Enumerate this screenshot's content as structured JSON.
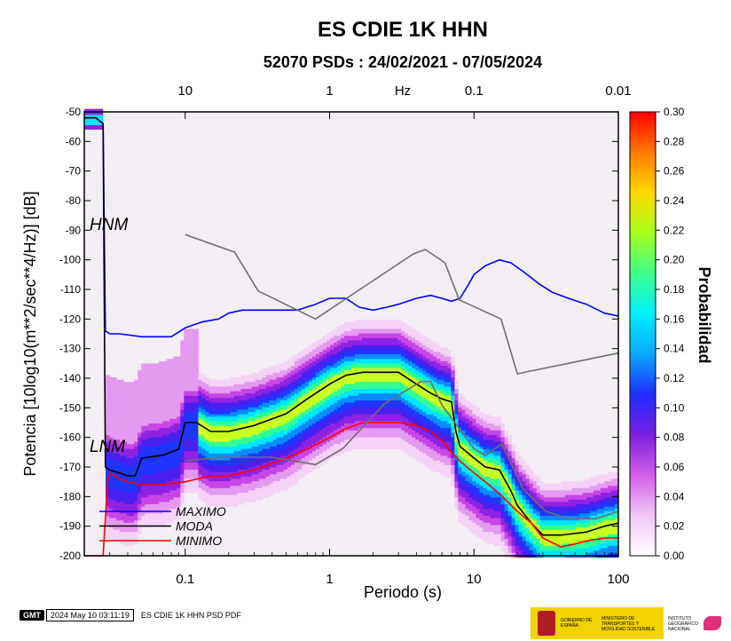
{
  "title": "ES CDIE 1K HHN",
  "subtitle": "52070 PSDs : 24/02/2021 - 07/05/2024",
  "footer": {
    "logo": "GMT",
    "timestamp": "2024 May 10 03:11:19",
    "caption": "ES CDIE 1K HHN PSD PDF",
    "agency_1": "GOBIERNO DE ESPAÑA",
    "agency_2": "MINISTERIO DE TRANSPORTES Y MOVILIDAD SOSTENIBLE",
    "agency_3": "INSTITUTO GEOGRÁFICO NACIONAL"
  },
  "chart_data": {
    "type": "heatmap",
    "x_scale": "log",
    "xlabel": "Periodo (s)",
    "ylabel": "Potencia [10log10(m**2/sec**4/Hz)] [dB]",
    "xlim": [
      0.02,
      100
    ],
    "ylim": [
      -200,
      -50
    ],
    "x_ticks": [
      "0.1",
      "1",
      "10",
      "100"
    ],
    "x_tick_values": [
      0.1,
      1,
      10,
      100
    ],
    "top_axis_label": "Hz",
    "top_ticks": [
      "10",
      "1",
      "0.1",
      "0.01"
    ],
    "top_tick_periods": [
      0.1,
      1,
      10,
      100
    ],
    "y_ticks": [
      -50,
      -60,
      -70,
      -80,
      -90,
      -100,
      -110,
      -120,
      -130,
      -140,
      -150,
      -160,
      -170,
      -180,
      -190,
      -200
    ],
    "colorbar": {
      "label": "Probabilidad",
      "range": [
        0.0,
        0.3
      ],
      "ticks": [
        "0.30",
        "0.28",
        "0.26",
        "0.24",
        "0.22",
        "0.20",
        "0.18",
        "0.16",
        "0.14",
        "0.12",
        "0.10",
        "0.08",
        "0.06",
        "0.04",
        "0.02",
        "0.00"
      ],
      "colors": [
        "#ffffff",
        "#f2c8f7",
        "#d35de9",
        "#7b1fe0",
        "#1f2cff",
        "#0aa8ff",
        "#00f0ff",
        "#3dff8a",
        "#a6ff1a",
        "#ffd800",
        "#ff7a00",
        "#ff0000"
      ]
    },
    "annotations": [
      "HNM",
      "LNM"
    ],
    "legend": {
      "position": "bottom-left",
      "entries": [
        {
          "label": "MAXIMO",
          "color": "#0000ff"
        },
        {
          "label": "MODA",
          "color": "#000000"
        },
        {
          "label": "MINIMO",
          "color": "#ff0000"
        }
      ]
    },
    "series": [
      {
        "name": "MAXIMO",
        "color": "#0000ff",
        "x": [
          0.02,
          0.024,
          0.027,
          0.028,
          0.03,
          0.035,
          0.05,
          0.08,
          0.1,
          0.13,
          0.17,
          0.2,
          0.25,
          0.3,
          0.4,
          0.6,
          0.8,
          1,
          1.3,
          1.6,
          2,
          2.5,
          3,
          4,
          5,
          6,
          7,
          8,
          9,
          10,
          12,
          15,
          18,
          22,
          28,
          35,
          45,
          60,
          80,
          100
        ],
        "y": [
          -52,
          -52,
          -54,
          -124,
          -125,
          -125,
          -126,
          -126,
          -123,
          -121,
          -120,
          -118,
          -117,
          -117,
          -117,
          -117,
          -115,
          -113,
          -113,
          -116,
          -117,
          -116,
          -115,
          -113,
          -112,
          -113,
          -114,
          -113,
          -109,
          -105,
          -102,
          -100,
          -101,
          -104,
          -108,
          -111,
          -113,
          -115,
          -118,
          -119
        ]
      },
      {
        "name": "MODA",
        "color": "#000000",
        "x": [
          0.02,
          0.024,
          0.027,
          0.028,
          0.03,
          0.035,
          0.04,
          0.045,
          0.05,
          0.07,
          0.09,
          0.1,
          0.12,
          0.15,
          0.2,
          0.3,
          0.5,
          0.7,
          1,
          1.3,
          1.7,
          2,
          3,
          4,
          5,
          6,
          7,
          7.5,
          8,
          10,
          12,
          15,
          18,
          20,
          25,
          30,
          40,
          60,
          80,
          100
        ],
        "y": [
          -52,
          -52,
          -54,
          -170,
          -171,
          -172,
          -173,
          -173,
          -167,
          -166,
          -164,
          -155,
          -155,
          -158,
          -158,
          -156,
          -152,
          -147,
          -142,
          -139,
          -138,
          -138,
          -138,
          -142,
          -145,
          -147,
          -148,
          -158,
          -163,
          -167,
          -170,
          -171,
          -178,
          -183,
          -189,
          -193,
          -193,
          -192,
          -190,
          -189
        ]
      },
      {
        "name": "MINIMO",
        "color": "#ff0000",
        "x": [
          0.02,
          0.024,
          0.027,
          0.029,
          0.03,
          0.035,
          0.04,
          0.05,
          0.07,
          0.1,
          0.15,
          0.2,
          0.3,
          0.5,
          0.7,
          1,
          1.3,
          1.7,
          2,
          2.5,
          3,
          4,
          5,
          6,
          7,
          8,
          10,
          12,
          15,
          20,
          25,
          30,
          40,
          50,
          60,
          80,
          100
        ],
        "y": [
          -200,
          -200,
          -200,
          -175,
          -172,
          -174,
          -175,
          -176,
          -176,
          -175,
          -173,
          -173,
          -171,
          -167,
          -164,
          -160,
          -157,
          -155,
          -155,
          -155,
          -155,
          -156,
          -158,
          -161,
          -165,
          -168,
          -172,
          -175,
          -179,
          -185,
          -189,
          -194,
          -197,
          -196,
          -195,
          -194,
          -194
        ]
      },
      {
        "name": "HNM",
        "color": "#6e6e6e",
        "x": [
          0.1,
          0.22,
          0.32,
          0.8,
          3.8,
          4.6,
          6.3,
          7.9,
          15.4,
          20,
          100
        ],
        "y": [
          -91.5,
          -97.4,
          -110.5,
          -120,
          -98,
          -96.5,
          -101,
          -113.5,
          -120,
          -138.5,
          -131.5
        ]
      },
      {
        "name": "LNM",
        "color": "#6e6e6e",
        "x": [
          0.1,
          0.17,
          0.4,
          0.8,
          1.24,
          2.4,
          4.3,
          5,
          6,
          10,
          12,
          15.6,
          21.9,
          31.6,
          45,
          70,
          100
        ],
        "y": [
          -168,
          -166.7,
          -166.7,
          -169.2,
          -163.7,
          -148.6,
          -141.1,
          -141.1,
          -149,
          -163.8,
          -166.2,
          -162.1,
          -177.5,
          -185,
          -187.5,
          -187.5,
          -185
        ]
      }
    ]
  }
}
